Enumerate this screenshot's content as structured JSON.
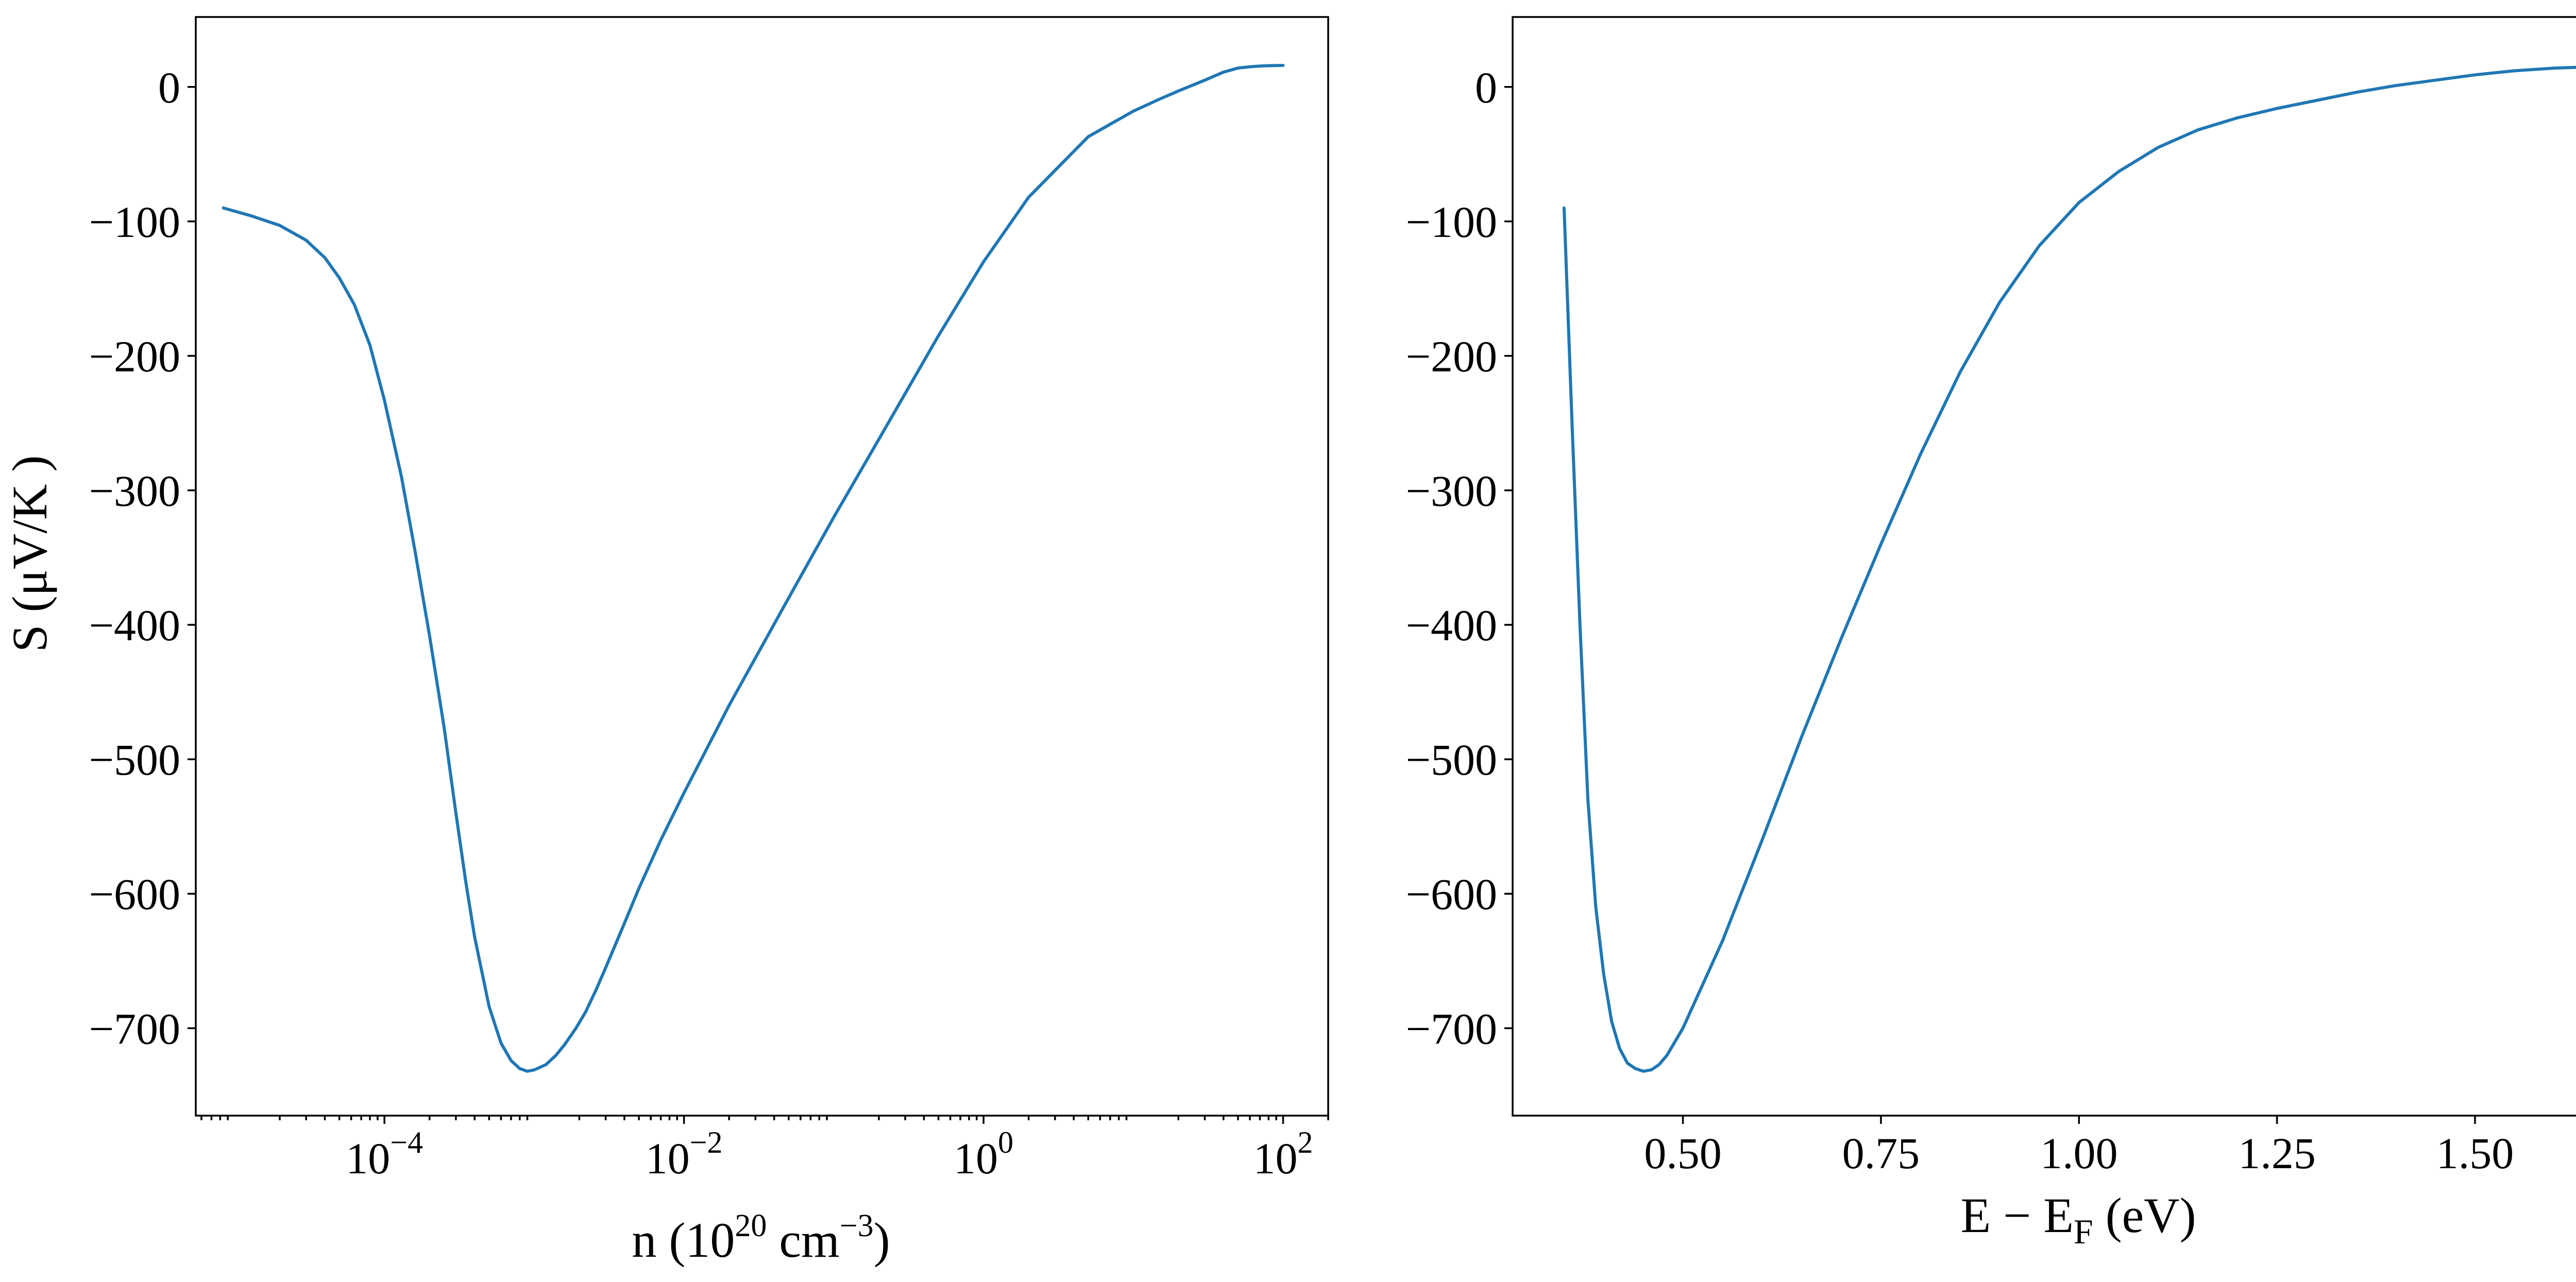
{
  "colors": {
    "line": "#1f77b4",
    "axes": "#000000",
    "background": "#ffffff"
  },
  "chart_data": [
    {
      "type": "line",
      "x_scale": "log",
      "xlim": [
        5.5e-06,
        200
      ],
      "ylim": [
        -765,
        52
      ],
      "grid": false,
      "ylabel": "S (μV/K )",
      "xlabel": {
        "base": "n (10",
        "sup1": "20",
        "mid": " cm",
        "sup2": "−3",
        "tail": ")"
      },
      "x_ticks": [
        {
          "value": 0.0001,
          "base": "10",
          "exp": "−4"
        },
        {
          "value": 0.01,
          "base": "10",
          "exp": "−2"
        },
        {
          "value": 1,
          "base": "10",
          "exp": "0"
        },
        {
          "value": 100,
          "base": "10",
          "exp": "2"
        }
      ],
      "y_ticks": [
        {
          "value": 0,
          "label": "0"
        },
        {
          "value": -100,
          "label": "−100"
        },
        {
          "value": -200,
          "label": "−200"
        },
        {
          "value": -300,
          "label": "−300"
        },
        {
          "value": -400,
          "label": "−400"
        },
        {
          "value": -500,
          "label": "−500"
        },
        {
          "value": -600,
          "label": "−600"
        },
        {
          "value": -700,
          "label": "−700"
        }
      ],
      "series": [
        {
          "x": [
            8.4e-06,
            1.3e-05,
            2e-05,
            3e-05,
            4e-05,
            5e-05,
            6.3e-05,
            8e-05,
            0.0001,
            0.00013,
            0.00016,
            0.0002,
            0.00025,
            0.0003,
            0.00035,
            0.0004,
            0.0005,
            0.0006,
            0.0007,
            0.0008,
            0.0009,
            0.001,
            0.0012,
            0.0014,
            0.0016,
            0.0019,
            0.0022,
            0.0026,
            0.003,
            0.004,
            0.005,
            0.007,
            0.01,
            0.02,
            0.05,
            0.1,
            0.2,
            0.5,
            1,
            2,
            5,
            10,
            15,
            20,
            30,
            40,
            50,
            60,
            70,
            80,
            100
          ],
          "y": [
            -90,
            -96,
            -103,
            -114,
            -127,
            -142,
            -162,
            -192,
            -233,
            -290,
            -345,
            -408,
            -476,
            -540,
            -592,
            -632,
            -684,
            -711,
            -724,
            -730,
            -732,
            -731,
            -727,
            -720,
            -712,
            -700,
            -688,
            -671,
            -655,
            -622,
            -596,
            -560,
            -525,
            -460,
            -380,
            -320,
            -262,
            -185,
            -130,
            -82,
            -37,
            -18,
            -9,
            -3,
            5,
            11,
            14,
            15,
            15.5,
            15.8,
            16
          ]
        }
      ]
    },
    {
      "type": "line",
      "x_scale": "linear",
      "xlim": [
        0.285,
        1.714
      ],
      "ylim": [
        -765,
        52
      ],
      "grid": false,
      "ylabel": "",
      "xlabel": {
        "base": "E − E",
        "sub": "F",
        "tail": " (eV)"
      },
      "x_ticks": [
        {
          "value": 0.5,
          "label": "0.50"
        },
        {
          "value": 0.75,
          "label": "0.75"
        },
        {
          "value": 1.0,
          "label": "1.00"
        },
        {
          "value": 1.25,
          "label": "1.25"
        },
        {
          "value": 1.5,
          "label": "1.50"
        }
      ],
      "y_ticks": [
        {
          "value": 0,
          "label": "0"
        },
        {
          "value": -100,
          "label": "−100"
        },
        {
          "value": -200,
          "label": "−200"
        },
        {
          "value": -300,
          "label": "−300"
        },
        {
          "value": -400,
          "label": "−400"
        },
        {
          "value": -500,
          "label": "−500"
        },
        {
          "value": -600,
          "label": "−600"
        },
        {
          "value": -700,
          "label": "−700"
        }
      ],
      "series": [
        {
          "x": [
            0.35,
            0.36,
            0.37,
            0.38,
            0.39,
            0.4,
            0.41,
            0.42,
            0.43,
            0.44,
            0.45,
            0.46,
            0.47,
            0.48,
            0.5,
            0.55,
            0.6,
            0.65,
            0.7,
            0.75,
            0.8,
            0.85,
            0.9,
            0.95,
            1.0,
            1.05,
            1.1,
            1.15,
            1.2,
            1.25,
            1.3,
            1.35,
            1.4,
            1.45,
            1.5,
            1.55,
            1.6,
            1.65
          ],
          "y": [
            -90,
            -250,
            -400,
            -530,
            -610,
            -660,
            -695,
            -715,
            -726,
            -730,
            -732,
            -731,
            -727,
            -720,
            -700,
            -635,
            -560,
            -483,
            -410,
            -340,
            -273,
            -212,
            -160,
            -118,
            -86,
            -63,
            -45,
            -32,
            -23,
            -16,
            -10,
            -4,
            1,
            5,
            9,
            12,
            14,
            15
          ]
        }
      ]
    }
  ]
}
